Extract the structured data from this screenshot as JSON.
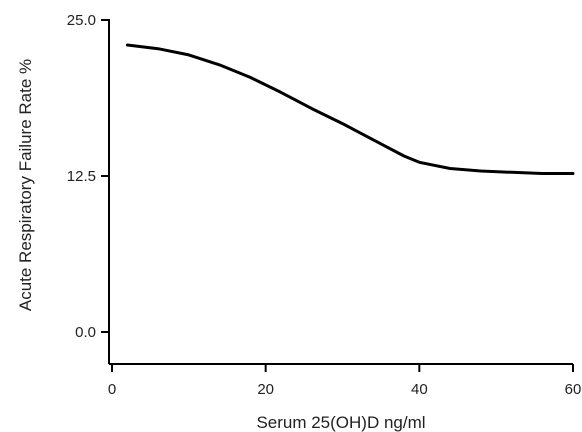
{
  "chart_data": {
    "type": "line",
    "title": "",
    "xlabel": "Serum 25(OH)D ng/ml",
    "ylabel": "Acute Respiratory Failure Rate %",
    "xlim": [
      0,
      60
    ],
    "ylim": [
      0,
      25
    ],
    "x_ticks": [
      {
        "value": 0,
        "label": "0"
      },
      {
        "value": 20,
        "label": "20"
      },
      {
        "value": 40,
        "label": "40"
      },
      {
        "value": 60,
        "label": "60"
      }
    ],
    "y_ticks": [
      {
        "value": 0,
        "label": "0.0"
      },
      {
        "value": 12.5,
        "label": "12.5"
      },
      {
        "value": 25,
        "label": "25.0"
      }
    ],
    "grid": false,
    "line_color": "#000000",
    "series": [
      {
        "x": [
          2,
          6,
          10,
          14,
          18,
          22,
          26,
          30,
          34,
          38,
          40,
          44,
          48,
          52,
          56,
          60
        ],
        "y": [
          23.0,
          22.7,
          22.2,
          21.4,
          20.4,
          19.2,
          17.9,
          16.7,
          15.4,
          14.1,
          13.6,
          13.1,
          12.9,
          12.8,
          12.7,
          12.7
        ]
      }
    ]
  }
}
